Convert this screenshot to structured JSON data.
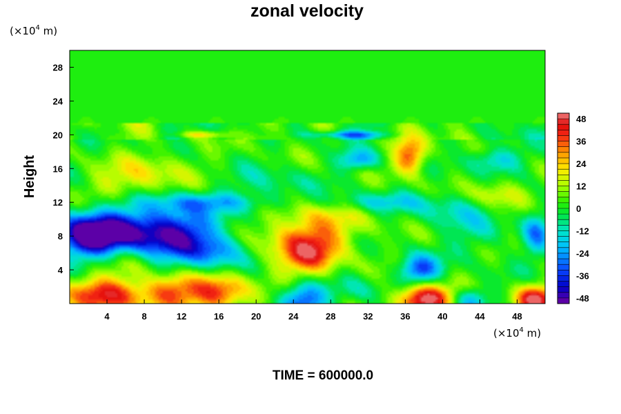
{
  "chart_data": {
    "type": "heatmap",
    "title": "zonal velocity",
    "ylabel": "Height",
    "xlabel": "",
    "x_unit_prefix": "(×10",
    "x_unit_exp": "4",
    "x_unit_suffix": " m)",
    "y_unit_prefix": "(×10",
    "y_unit_exp": "4",
    "y_unit_suffix": " m)",
    "footer": "TIME = 600000.0",
    "xlim": [
      0,
      51
    ],
    "ylim": [
      0,
      30
    ],
    "x_ticks": [
      4,
      8,
      12,
      16,
      20,
      24,
      28,
      32,
      36,
      40,
      44,
      48
    ],
    "y_ticks": [
      4,
      8,
      12,
      16,
      20,
      24,
      28
    ],
    "colorbar": {
      "levels": [
        -48,
        -36,
        -24,
        -12,
        0,
        12,
        24,
        36,
        48
      ],
      "labels": [
        "48",
        "36",
        "24",
        "12",
        "0",
        "-12",
        "-24",
        "-36",
        "-48"
      ],
      "range": [
        -51,
        51
      ],
      "step": 3
    },
    "features": [
      {
        "x": 2,
        "y": 8,
        "v": -50,
        "sx": 2.5,
        "sy": 1.8
      },
      {
        "x": 7,
        "y": 8.5,
        "v": -38,
        "sx": 4,
        "sy": 2
      },
      {
        "x": 12,
        "y": 8,
        "v": -30,
        "sx": 3,
        "sy": 2.5
      },
      {
        "x": 16,
        "y": 6,
        "v": -20,
        "sx": 2,
        "sy": 1.5
      },
      {
        "x": 25,
        "y": 7,
        "v": 30,
        "sx": 2.8,
        "sy": 3
      },
      {
        "x": 26,
        "y": 6,
        "v": 12,
        "sx": 2,
        "sy": 1.5
      },
      {
        "x": 37.5,
        "y": 4,
        "v": -35,
        "sx": 1.5,
        "sy": 1.2
      },
      {
        "x": 38,
        "y": 0.5,
        "v": 55,
        "sx": 2,
        "sy": 1.2
      },
      {
        "x": 4,
        "y": 1,
        "v": 38,
        "sx": 3.5,
        "sy": 1.5
      },
      {
        "x": 11,
        "y": 1.5,
        "v": 30,
        "sx": 2,
        "sy": 1.5
      },
      {
        "x": 16,
        "y": 1.2,
        "v": 38,
        "sx": 2.2,
        "sy": 1.5
      },
      {
        "x": 25,
        "y": 0.5,
        "v": -38,
        "sx": 1.8,
        "sy": 1.5
      },
      {
        "x": 31,
        "y": 1.5,
        "v": -10,
        "sx": 2,
        "sy": 1.2
      },
      {
        "x": 43,
        "y": 0.5,
        "v": -24,
        "sx": 1.2,
        "sy": 1
      },
      {
        "x": 50,
        "y": 0.5,
        "v": 45,
        "sx": 1.5,
        "sy": 1.2
      },
      {
        "x": 36.5,
        "y": 17.5,
        "v": 36,
        "sx": 1.2,
        "sy": 1.5
      },
      {
        "x": 45.5,
        "y": 17,
        "v": -20,
        "sx": 2,
        "sy": 1
      },
      {
        "x": 31,
        "y": 17,
        "v": -24,
        "sx": 1.5,
        "sy": 0.8
      },
      {
        "x": 30,
        "y": 20,
        "v": -24,
        "sx": 3,
        "sy": 0.3
      },
      {
        "x": 14,
        "y": 20,
        "v": 18,
        "sx": 2,
        "sy": 0.3
      },
      {
        "x": 15,
        "y": 12,
        "v": -18,
        "sx": 5,
        "sy": 0.8
      },
      {
        "x": 33,
        "y": 12,
        "v": -15,
        "sx": 4,
        "sy": 0.8
      },
      {
        "x": 6,
        "y": 14,
        "v": 12,
        "sx": 3,
        "sy": 1.5
      },
      {
        "x": 46,
        "y": 13,
        "v": 18,
        "sx": 2,
        "sy": 1.2
      },
      {
        "x": 50,
        "y": 8.5,
        "v": -24,
        "sx": 1,
        "sy": 2
      },
      {
        "x": 9,
        "y": 16,
        "v": 12,
        "sx": 3,
        "sy": 1.5
      },
      {
        "x": 22,
        "y": 14,
        "v": -10,
        "sx": 3,
        "sy": 1.5
      },
      {
        "x": 44,
        "y": 8,
        "v": -10,
        "sx": 2,
        "sy": 1.5
      },
      {
        "x": 29,
        "y": 9,
        "v": 10,
        "sx": 3,
        "sy": 2
      },
      {
        "x": 5,
        "y": 5,
        "v": 10,
        "sx": 3,
        "sy": 1.5
      },
      {
        "x": 41,
        "y": 11,
        "v": -12,
        "sx": 3,
        "sy": 1.5
      }
    ]
  }
}
